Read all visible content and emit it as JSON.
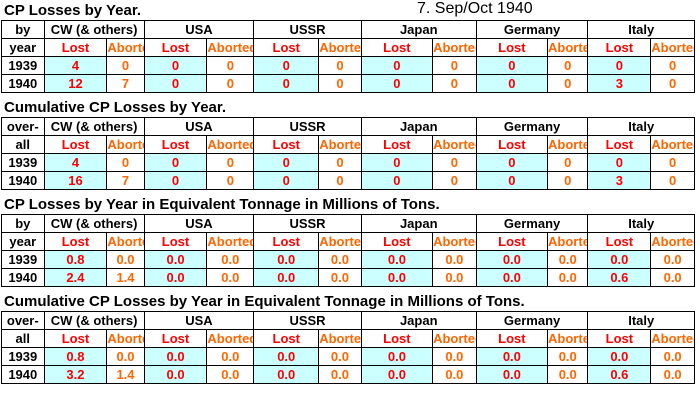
{
  "edition": "7.  Sep/Oct 1940",
  "columns": {
    "groups": [
      "CW (& others)",
      "USA",
      "USSR",
      "Japan",
      "Germany",
      "Italy"
    ],
    "lost": "Lost",
    "aborted": "Aborted"
  },
  "sections": [
    {
      "title": "CP Losses by Year.",
      "label1": "by",
      "label2": "year",
      "rows": [
        {
          "year": "1939",
          "values": [
            "4",
            "0",
            "0",
            "0",
            "0",
            "0",
            "0",
            "0",
            "0",
            "0",
            "0",
            "0"
          ]
        },
        {
          "year": "1940",
          "values": [
            "12",
            "7",
            "0",
            "0",
            "0",
            "0",
            "0",
            "0",
            "0",
            "0",
            "3",
            "0"
          ]
        }
      ]
    },
    {
      "title": "Cumulative CP Losses by Year.",
      "label1": "over-",
      "label2": "all",
      "rows": [
        {
          "year": "1939",
          "values": [
            "4",
            "0",
            "0",
            "0",
            "0",
            "0",
            "0",
            "0",
            "0",
            "0",
            "0",
            "0"
          ]
        },
        {
          "year": "1940",
          "values": [
            "16",
            "7",
            "0",
            "0",
            "0",
            "0",
            "0",
            "0",
            "0",
            "0",
            "3",
            "0"
          ]
        }
      ]
    },
    {
      "title": "CP Losses by Year in Equivalent Tonnage in Millions of Tons.",
      "label1": "by",
      "label2": "year",
      "rows": [
        {
          "year": "1939",
          "values": [
            "0.8",
            "0.0",
            "0.0",
            "0.0",
            "0.0",
            "0.0",
            "0.0",
            "0.0",
            "0.0",
            "0.0",
            "0.0",
            "0.0"
          ]
        },
        {
          "year": "1940",
          "values": [
            "2.4",
            "1.4",
            "0.0",
            "0.0",
            "0.0",
            "0.0",
            "0.0",
            "0.0",
            "0.0",
            "0.0",
            "0.6",
            "0.0"
          ]
        }
      ]
    },
    {
      "title": "Cumulative CP Losses by Year in Equivalent Tonnage in Millions of Tons.",
      "label1": "over-",
      "label2": "all",
      "rows": [
        {
          "year": "1939",
          "values": [
            "0.8",
            "0.0",
            "0.0",
            "0.0",
            "0.0",
            "0.0",
            "0.0",
            "0.0",
            "0.0",
            "0.0",
            "0.0",
            "0.0"
          ]
        },
        {
          "year": "1940",
          "values": [
            "3.2",
            "1.4",
            "0.0",
            "0.0",
            "0.0",
            "0.0",
            "0.0",
            "0.0",
            "0.0",
            "0.0",
            "0.6",
            "0.0"
          ]
        }
      ]
    }
  ]
}
